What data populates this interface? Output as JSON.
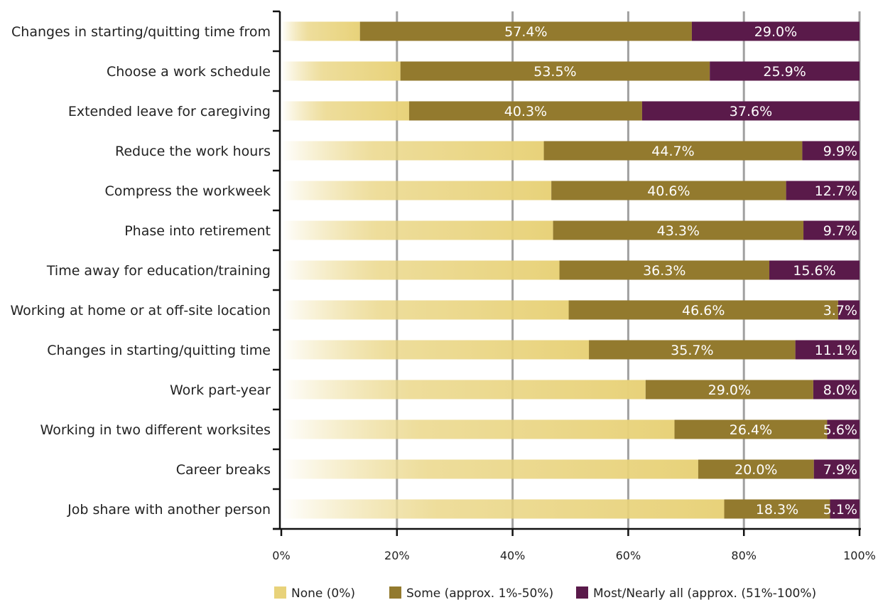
{
  "chart_data": {
    "type": "bar",
    "orientation": "horizontal",
    "stacked": true,
    "categories": [
      "Changes in starting/quitting time from",
      "Choose a work schedule",
      "Extended leave for caregiving",
      "Reduce the work hours",
      "Compress the workweek",
      "Phase into retirement",
      "Time away for education/training",
      "Working at home or at off-site location",
      "Changes in starting/quitting time",
      "Work part-year",
      "Working in two different worksites",
      "Career breaks",
      "Job share with another person"
    ],
    "series": [
      {
        "name": "None (0%)",
        "color": "#e8d27a",
        "values": [
          13.6,
          20.6,
          22.1,
          45.4,
          46.7,
          47.0,
          48.1,
          49.7,
          53.2,
          63.0,
          68.0,
          72.1,
          76.6
        ],
        "labels": [
          "",
          "",
          "",
          "",
          "",
          "",
          "",
          "",
          "",
          "",
          "",
          "",
          ""
        ]
      },
      {
        "name": "Some (approx. 1%-50%)",
        "color": "#937a2e",
        "values": [
          57.4,
          53.5,
          40.3,
          44.7,
          40.6,
          43.3,
          36.3,
          46.6,
          35.7,
          29.0,
          26.4,
          20.0,
          18.3
        ],
        "labels": [
          "57.4%",
          "53.5%",
          "40.3%",
          "44.7%",
          "40.6%",
          "43.3%",
          "36.3%",
          "46.6%",
          "35.7%",
          "29.0%",
          "26.4%",
          "20.0%",
          "18.3%"
        ]
      },
      {
        "name": "Most/Nearly all (approx. (51%-100%)",
        "color": "#5a1a4a",
        "values": [
          29.0,
          25.9,
          37.6,
          9.9,
          12.7,
          9.7,
          15.6,
          3.7,
          11.1,
          8.0,
          5.6,
          7.9,
          5.1
        ],
        "labels": [
          "29.0%",
          "25.9%",
          "37.6%",
          "9.9%",
          "12.7%",
          "9.7%",
          "15.6%",
          "3.7%",
          "11.1%",
          "8.0%",
          "5.6%",
          "7.9%",
          "5.1%"
        ]
      }
    ],
    "xlim": [
      0,
      100
    ],
    "xticks": [
      "0%",
      "20%",
      "40%",
      "60%",
      "80%",
      "100%"
    ],
    "grid": true,
    "legend_position": "bottom"
  }
}
